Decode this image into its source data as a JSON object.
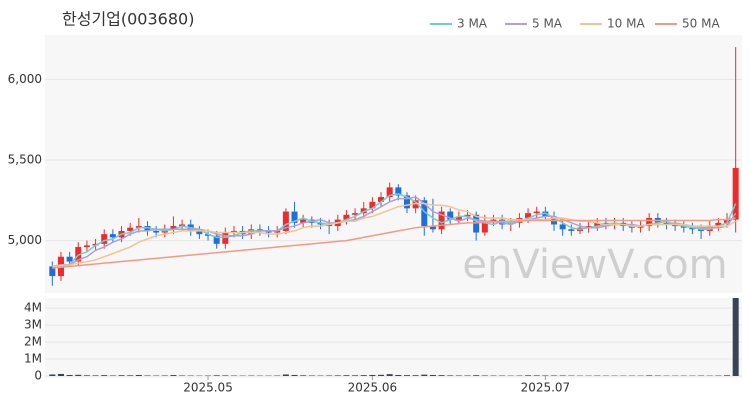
{
  "chart_data": [
    {
      "type": "candlestick",
      "title": "한성기업(003680)",
      "watermark": "enViewV.com",
      "up_color": "#ee2a2a",
      "down_color": "#1e6fd9",
      "grid": true,
      "ylim": [
        4675,
        6275
      ],
      "yticks": [
        {
          "value": 5000,
          "label": "5,000"
        },
        {
          "value": 5500,
          "label": "5,500"
        },
        {
          "value": 6000,
          "label": "6,000"
        }
      ],
      "open": [
        4840,
        4780,
        4900,
        4870,
        4960,
        4970,
        4980,
        5040,
        5020,
        5060,
        5080,
        5090,
        5060,
        5050,
        5070,
        5090,
        5100,
        5060,
        5040,
        5030,
        4980,
        5050,
        5060,
        5040,
        5070,
        5060,
        5050,
        5060,
        5180,
        5110,
        5130,
        5110,
        5100,
        5090,
        5130,
        5160,
        5170,
        5200,
        5240,
        5270,
        5330,
        5280,
        5200,
        5250,
        5090,
        5070,
        5180,
        5130,
        5150,
        5160,
        5050,
        5120,
        5130,
        5100,
        5110,
        5140,
        5170,
        5180,
        5150,
        5100,
        5070,
        5060,
        5080,
        5090,
        5110,
        5100,
        5110,
        5090,
        5080,
        5090,
        5140,
        5110,
        5100,
        5090,
        5080,
        5070,
        5060,
        5090,
        5110,
        5130
      ],
      "high": [
        4870,
        4930,
        4930,
        4990,
        5000,
        5010,
        5070,
        5070,
        5090,
        5110,
        5140,
        5120,
        5090,
        5100,
        5150,
        5130,
        5130,
        5090,
        5070,
        5060,
        5080,
        5090,
        5090,
        5100,
        5100,
        5090,
        5090,
        5200,
        5240,
        5160,
        5150,
        5140,
        5130,
        5160,
        5190,
        5200,
        5240,
        5270,
        5300,
        5360,
        5350,
        5300,
        5280,
        5270,
        5260,
        5210,
        5200,
        5180,
        5190,
        5180,
        5160,
        5160,
        5160,
        5140,
        5170,
        5200,
        5210,
        5210,
        5180,
        5130,
        5100,
        5110,
        5120,
        5140,
        5140,
        5140,
        5140,
        5120,
        5120,
        5170,
        5170,
        5140,
        5130,
        5120,
        5110,
        5100,
        5120,
        5140,
        5170,
        6200
      ],
      "low": [
        4720,
        4750,
        4840,
        4840,
        4930,
        4940,
        4950,
        4990,
        4990,
        5030,
        5050,
        5030,
        5020,
        5020,
        5040,
        5060,
        5030,
        5010,
        5000,
        4950,
        4950,
        5020,
        5010,
        5010,
        5030,
        5020,
        5020,
        5040,
        5080,
        5080,
        5080,
        5070,
        5040,
        5060,
        5100,
        5130,
        5140,
        5170,
        5210,
        5240,
        5250,
        5170,
        5170,
        5030,
        5050,
        5040,
        5100,
        5100,
        5120,
        5000,
        5030,
        5090,
        5070,
        5060,
        5080,
        5110,
        5140,
        5120,
        5060,
        5030,
        5030,
        5040,
        5050,
        5060,
        5070,
        5070,
        5060,
        5050,
        5050,
        5060,
        5080,
        5070,
        5060,
        5050,
        5040,
        5010,
        5030,
        5060,
        5080,
        5050
      ],
      "close": [
        4780,
        4900,
        4870,
        4960,
        4970,
        4980,
        5040,
        5020,
        5060,
        5080,
        5090,
        5060,
        5050,
        5070,
        5090,
        5100,
        5060,
        5040,
        5030,
        4980,
        5050,
        5060,
        5040,
        5070,
        5060,
        5050,
        5060,
        5180,
        5110,
        5130,
        5110,
        5100,
        5090,
        5130,
        5160,
        5170,
        5200,
        5240,
        5270,
        5330,
        5280,
        5200,
        5250,
        5090,
        5070,
        5180,
        5130,
        5150,
        5160,
        5050,
        5120,
        5130,
        5100,
        5110,
        5140,
        5170,
        5180,
        5150,
        5100,
        5070,
        5060,
        5080,
        5090,
        5110,
        5100,
        5110,
        5090,
        5080,
        5090,
        5140,
        5110,
        5100,
        5090,
        5080,
        5070,
        5060,
        5090,
        5110,
        5130,
        5450
      ],
      "legend": "top-right",
      "series": [
        {
          "name": "3 MA",
          "color": "#6fcfcf",
          "values": [
            4830,
            4840,
            4850,
            4910,
            4930,
            4970,
            5000,
            5010,
            5040,
            5050,
            5080,
            5080,
            5070,
            5060,
            5070,
            5090,
            5080,
            5070,
            5040,
            5020,
            5020,
            5030,
            5050,
            5060,
            5060,
            5060,
            5060,
            5100,
            5120,
            5140,
            5120,
            5110,
            5100,
            5110,
            5130,
            5150,
            5180,
            5200,
            5240,
            5280,
            5290,
            5270,
            5240,
            5180,
            5140,
            5110,
            5130,
            5150,
            5150,
            5120,
            5110,
            5100,
            5120,
            5110,
            5120,
            5140,
            5160,
            5170,
            5140,
            5110,
            5080,
            5070,
            5080,
            5090,
            5100,
            5110,
            5100,
            5090,
            5090,
            5100,
            5110,
            5120,
            5100,
            5090,
            5080,
            5070,
            5070,
            5090,
            5110,
            5230
          ]
        },
        {
          "name": "5 MA",
          "color": "#b39ddb",
          "values": [
            4840,
            4850,
            4850,
            4880,
            4900,
            4940,
            4960,
            4990,
            5010,
            5040,
            5060,
            5060,
            5070,
            5070,
            5070,
            5070,
            5070,
            5070,
            5060,
            5040,
            5030,
            5030,
            5030,
            5040,
            5060,
            5060,
            5060,
            5080,
            5090,
            5110,
            5120,
            5130,
            5110,
            5110,
            5120,
            5130,
            5150,
            5180,
            5210,
            5240,
            5260,
            5260,
            5270,
            5230,
            5180,
            5160,
            5140,
            5120,
            5140,
            5130,
            5120,
            5120,
            5110,
            5100,
            5120,
            5130,
            5140,
            5150,
            5150,
            5130,
            5110,
            5090,
            5080,
            5080,
            5090,
            5100,
            5100,
            5100,
            5090,
            5100,
            5100,
            5100,
            5110,
            5100,
            5090,
            5080,
            5080,
            5080,
            5090,
            5170
          ]
        },
        {
          "name": "10 MA",
          "color": "#f3c48f",
          "values": [
            4840,
            4845,
            4850,
            4860,
            4870,
            4880,
            4900,
            4920,
            4940,
            4960,
            4990,
            5010,
            5030,
            5040,
            5050,
            5060,
            5060,
            5060,
            5060,
            5050,
            5050,
            5050,
            5050,
            5050,
            5050,
            5040,
            5040,
            5050,
            5060,
            5080,
            5090,
            5090,
            5100,
            5110,
            5120,
            5120,
            5140,
            5150,
            5170,
            5190,
            5210,
            5220,
            5230,
            5230,
            5220,
            5220,
            5210,
            5190,
            5180,
            5150,
            5140,
            5140,
            5140,
            5130,
            5130,
            5130,
            5130,
            5130,
            5140,
            5140,
            5130,
            5120,
            5120,
            5110,
            5100,
            5100,
            5100,
            5090,
            5090,
            5100,
            5100,
            5100,
            5100,
            5100,
            5090,
            5090,
            5090,
            5090,
            5090,
            5120
          ]
        },
        {
          "name": "50 MA",
          "color": "#f29a85",
          "values": [
            4830,
            4835,
            4840,
            4845,
            4850,
            4855,
            4860,
            4865,
            4870,
            4875,
            4880,
            4885,
            4890,
            4895,
            4900,
            4905,
            4910,
            4915,
            4920,
            4925,
            4930,
            4935,
            4940,
            4945,
            4950,
            4955,
            4960,
            4965,
            4970,
            4975,
            4980,
            4985,
            4990,
            4995,
            5000,
            5010,
            5020,
            5030,
            5040,
            5050,
            5060,
            5070,
            5080,
            5085,
            5090,
            5095,
            5100,
            5105,
            5110,
            5110,
            5115,
            5115,
            5120,
            5120,
            5120,
            5125,
            5125,
            5125,
            5125,
            5125,
            5125,
            5125,
            5125,
            5125,
            5125,
            5125,
            5125,
            5125,
            5125,
            5125,
            5125,
            5125,
            5125,
            5125,
            5125,
            5125,
            5125,
            5130,
            5130,
            5140
          ]
        }
      ]
    },
    {
      "type": "bar",
      "color": "#3a4256",
      "ylim": [
        0,
        4600000
      ],
      "yticks": [
        0,
        {
          "value": 1000000,
          "label": "1M"
        },
        {
          "value": 2000000,
          "label": "2M"
        },
        {
          "value": 3000000,
          "label": "3M"
        },
        {
          "value": 4000000,
          "label": "4M"
        }
      ],
      "categories": [
        null,
        null,
        null,
        null,
        null,
        null,
        null,
        null,
        null,
        null,
        null,
        null,
        null,
        null,
        null,
        null,
        null,
        null,
        "2025.05",
        null,
        null,
        null,
        null,
        null,
        null,
        null,
        null,
        null,
        null,
        null,
        null,
        null,
        null,
        null,
        null,
        null,
        null,
        "2025.06",
        null,
        null,
        null,
        null,
        null,
        null,
        null,
        null,
        null,
        null,
        null,
        null,
        null,
        null,
        null,
        null,
        null,
        null,
        null,
        "2025.07",
        null,
        null,
        null,
        null,
        null,
        null,
        null,
        null,
        null,
        null,
        null,
        null,
        null,
        null,
        null,
        null,
        null,
        null,
        null,
        null,
        null,
        null
      ],
      "values": [
        90000,
        120000,
        60000,
        70000,
        40000,
        35000,
        50000,
        30000,
        45000,
        40000,
        60000,
        30000,
        25000,
        30000,
        55000,
        30000,
        25000,
        20000,
        25000,
        40000,
        35000,
        25000,
        20000,
        25000,
        20000,
        20000,
        25000,
        90000,
        60000,
        40000,
        30000,
        25000,
        30000,
        35000,
        45000,
        40000,
        50000,
        60000,
        70000,
        110000,
        60000,
        50000,
        45000,
        80000,
        60000,
        50000,
        35000,
        30000,
        30000,
        45000,
        30000,
        25000,
        25000,
        20000,
        25000,
        40000,
        35000,
        30000,
        30000,
        30000,
        25000,
        20000,
        20000,
        25000,
        20000,
        20000,
        20000,
        20000,
        20000,
        35000,
        25000,
        20000,
        20000,
        20000,
        20000,
        25000,
        20000,
        25000,
        40000,
        4600000
      ]
    }
  ]
}
